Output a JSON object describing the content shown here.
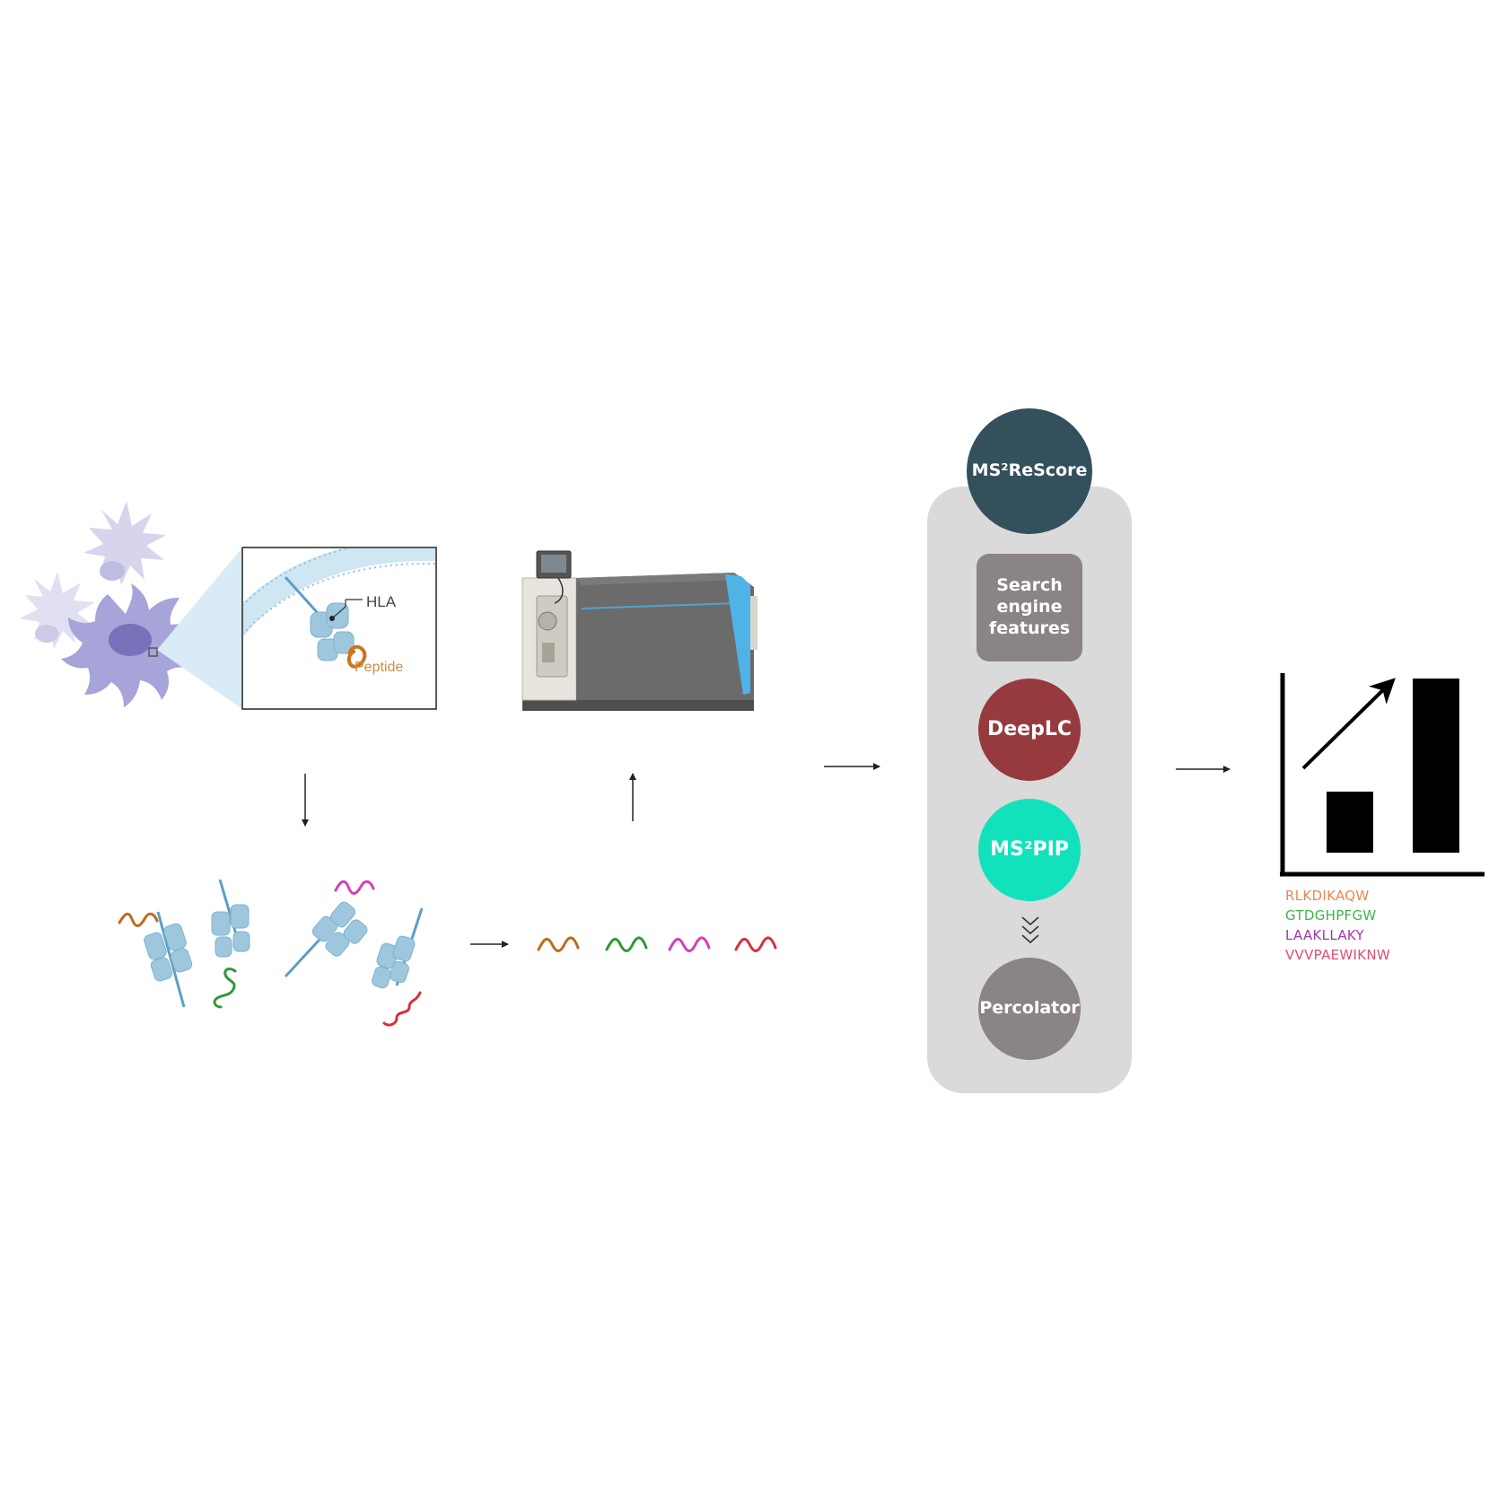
{
  "colors": {
    "hla": "#9ec7de",
    "hla_edge": "#5c9fc4",
    "cell": "#a6a4d8",
    "cell_nucleus": "#6e6ab4",
    "cell_light": "#cfcdea",
    "zoom_cone": "#d8ebf6",
    "ms2rescore": "#34505c",
    "search_engine": "#8a8584",
    "deeplc": "#973a3e",
    "ms2pip": "#12e2bc",
    "percolator": "#8a8584",
    "panel": "#dadada",
    "peptide_orange": "#c06a1d",
    "peptide_green": "#2e9a36",
    "peptide_magenta": "#d63fb4",
    "peptide_red": "#d82e3e",
    "seq_1": "#e7894f",
    "seq_2": "#3fb44b",
    "seq_3": "#a637a8",
    "seq_4": "#dd4f6f"
  },
  "inset": {
    "hla_label": "HLA",
    "peptide_label": "Peptide"
  },
  "pipeline": {
    "title": "MS²ReScore",
    "search_engine": "Search engine features",
    "deeplc": "DeepLC",
    "ms2pip": "MS²PIP",
    "percolator": "Percolator",
    "double_chevron_icon": "double-chevron-down-icon"
  },
  "results": {
    "chart_icon": "bar-chart-increase-icon",
    "sequences": [
      "RLKDIKAQW",
      "GTDGHPFGW",
      "LAAKLLAKY",
      "VVVPAEWIKNW"
    ]
  },
  "icons": {
    "cells": "dendritic-cell-icon",
    "mass_spectrometer": "mass-spectrometer-icon",
    "peptide_wave": "peptide-wave-icon",
    "arrow": "arrow-icon"
  }
}
